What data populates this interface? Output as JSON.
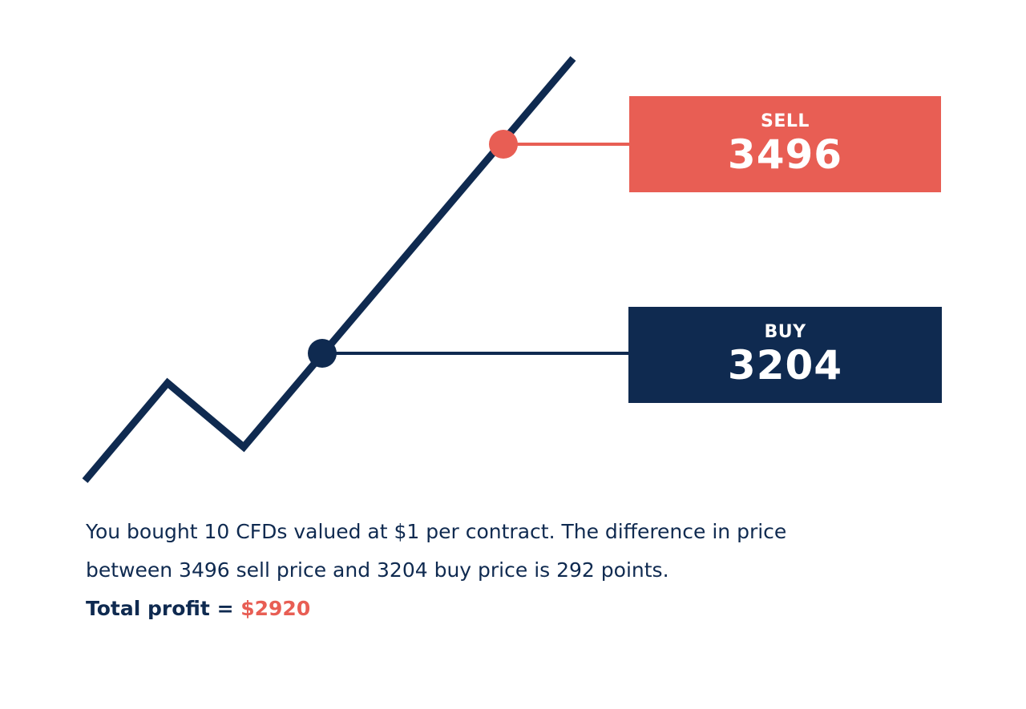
{
  "colors": {
    "navy": "#0f2a50",
    "coral": "#e85e54",
    "background": "#ffffff"
  },
  "sell": {
    "label": "SELL",
    "price": "3496"
  },
  "buy": {
    "label": "BUY",
    "price": "3204"
  },
  "explanation": {
    "line1": "You bought 10 CFDs valued at $1 per contract. The difference in price",
    "line2": "between 3496 sell price and 3204 buy price is 292 points.",
    "total_label": "Total profit = ",
    "total_value": "$2920"
  }
}
